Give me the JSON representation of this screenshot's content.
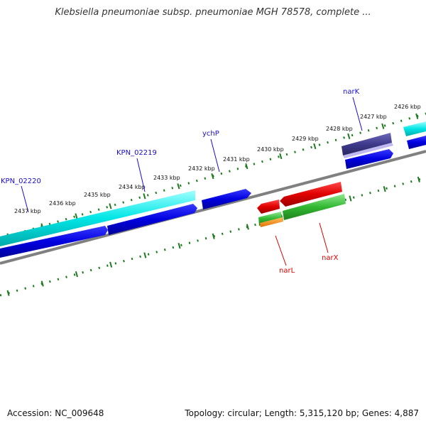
{
  "title": "Klebsiella pneumoniae subsp. pneumoniae MGH 78578, complete ...",
  "accession": "Accession: NC_009648",
  "topology": "Topology: circular; Length: 5,315,120 bp; Genes: 4,887",
  "kbp_labels": [
    "2426 kbp",
    "2427 kbp",
    "2428 kbp",
    "2429 kbp",
    "2430 kbp",
    "2431 kbp",
    "2432 kbp",
    "2433 kbp",
    "2434 kbp",
    "2435 kbp",
    "2436 kbp",
    "2437 kbp"
  ],
  "genes_forward": [
    {
      "name": "narK",
      "color": "#1a0dcc"
    },
    {
      "name": "ychP",
      "color": "#1a0dcc"
    },
    {
      "name": "KPN_02219",
      "color": "#1a0dcc"
    },
    {
      "name": "KPN_02220",
      "color": "#1a0dcc"
    }
  ],
  "genes_reverse": [
    {
      "name": "narL",
      "color": "#d40000"
    },
    {
      "name": "narX",
      "color": "#d40000"
    }
  ],
  "colors": {
    "forward_gene": "#0000e0",
    "cds_cyan": "#00e5e5",
    "narK_feature": "#3e3a8c",
    "reverse_gene": "#e00000",
    "reverse_cds": "#32b832",
    "orange_feature": "#ff8c00",
    "backbone": "#808080",
    "tick": "#1e7a1e"
  }
}
